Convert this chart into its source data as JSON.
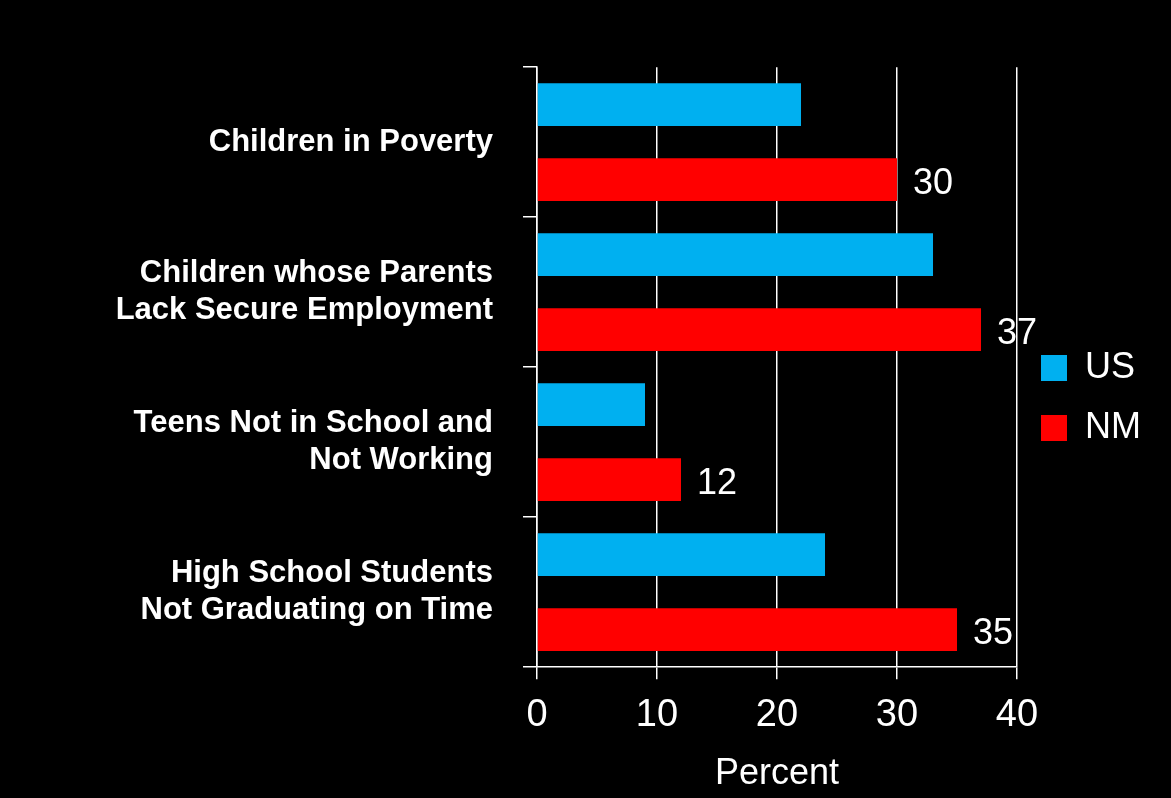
{
  "chart_data": {
    "type": "bar",
    "orientation": "horizontal",
    "xlabel": "Percent",
    "categories": [
      "Children in Poverty",
      "Children whose Parents\nLack Secure Employment",
      "Teens Not in School and\nNot Working",
      "High School Students\nNot Graduating on Time"
    ],
    "series": [
      {
        "name": "US",
        "color": "#00b0f0",
        "values": [
          22,
          33,
          9,
          24
        ]
      },
      {
        "name": "NM",
        "color": "#ff0000",
        "values": [
          30,
          37,
          12,
          35
        ],
        "value_labels": [
          "30",
          "37",
          "12",
          "35"
        ]
      }
    ],
    "xlim": [
      0,
      40
    ],
    "xticks": [
      0,
      10,
      20,
      30,
      40
    ],
    "grid": "x",
    "legend": "right"
  }
}
